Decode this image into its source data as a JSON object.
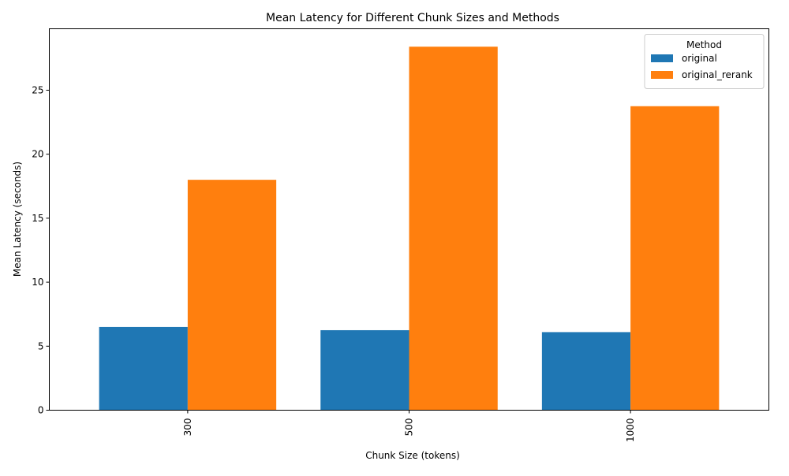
{
  "chart_data": {
    "type": "bar",
    "title": "Mean Latency for Different Chunk Sizes and Methods",
    "xlabel": "Chunk Size (tokens)",
    "ylabel": "Mean Latency (seconds)",
    "categories": [
      "300",
      "500",
      "1000"
    ],
    "series": [
      {
        "name": "original",
        "color": "#1f77b4",
        "values": [
          6.5,
          6.25,
          6.1
        ]
      },
      {
        "name": "original_rerank",
        "color": "#ff7f0e",
        "values": [
          18.0,
          28.4,
          23.75
        ]
      }
    ],
    "ylim": [
      0,
      29.8
    ],
    "yticks": [
      0,
      5,
      10,
      15,
      20,
      25
    ],
    "grid": false,
    "legend": {
      "title": "Method",
      "position": "top-right"
    }
  }
}
